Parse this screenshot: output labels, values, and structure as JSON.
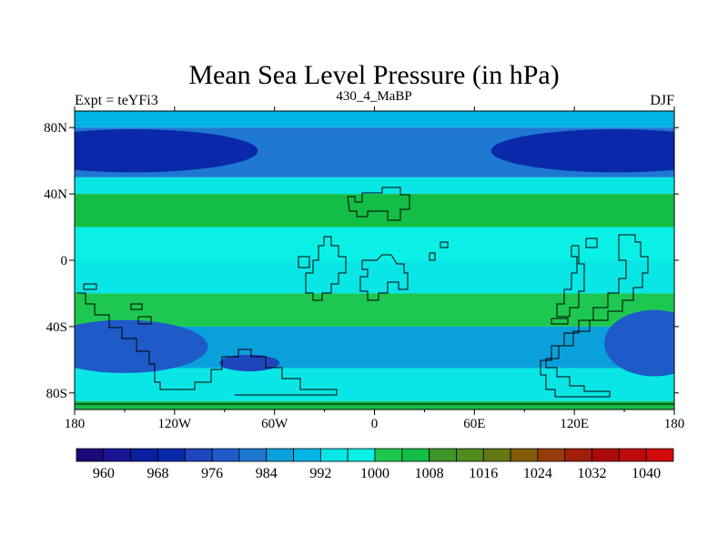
{
  "chart_data": {
    "type": "heatmap",
    "title": "Mean Sea Level Pressure (in hPa)",
    "left_label": "Expt = teYFi3",
    "center_label": "430_4_MaBP",
    "right_label": "DJF",
    "x_ticks": [
      {
        "value": -180,
        "label": "180"
      },
      {
        "value": -120,
        "label": "120W"
      },
      {
        "value": -60,
        "label": "60W"
      },
      {
        "value": 0,
        "label": "0"
      },
      {
        "value": 60,
        "label": "60E"
      },
      {
        "value": 120,
        "label": "120E"
      },
      {
        "value": 180,
        "label": "180"
      }
    ],
    "y_ticks": [
      {
        "value": 80,
        "label": "80N"
      },
      {
        "value": 40,
        "label": "40N"
      },
      {
        "value": 0,
        "label": "0"
      },
      {
        "value": -40,
        "label": "40S"
      },
      {
        "value": -80,
        "label": "80S"
      }
    ],
    "xlim": [
      -180,
      180
    ],
    "ylim": [
      -90,
      90
    ],
    "colorbar": {
      "boundaries": [
        956,
        960,
        964,
        968,
        972,
        976,
        980,
        984,
        988,
        992,
        996,
        1000,
        1004,
        1008,
        1012,
        1016,
        1020,
        1024,
        1028,
        1032,
        1036,
        1040,
        1044
      ],
      "labels": [
        {
          "value": 960,
          "label": "960"
        },
        {
          "value": 968,
          "label": "968"
        },
        {
          "value": 976,
          "label": "976"
        },
        {
          "value": 984,
          "label": "984"
        },
        {
          "value": 992,
          "label": "992"
        },
        {
          "value": 1000,
          "label": "1000"
        },
        {
          "value": 1008,
          "label": "1008"
        },
        {
          "value": 1016,
          "label": "1016"
        },
        {
          "value": 1024,
          "label": "1024"
        },
        {
          "value": 1032,
          "label": "1032"
        },
        {
          "value": 1040,
          "label": "1040"
        }
      ],
      "colors": [
        "#1a0a78",
        "#1a1496",
        "#0a1ea0",
        "#0a28aa",
        "#1e46bc",
        "#1e5ac8",
        "#1e78d2",
        "#0aa0dc",
        "#00b4e6",
        "#0ae6e6",
        "#0af0e6",
        "#1ec850",
        "#14be46",
        "#3c9628",
        "#508c1e",
        "#647814",
        "#825a0a",
        "#963c0a",
        "#a01e0a",
        "#aa0a0a",
        "#be0a0a",
        "#d20a0a"
      ]
    },
    "bands": [
      {
        "lat_min": 80,
        "lat_max": 90,
        "value": 988
      },
      {
        "lat_min": 50,
        "lat_max": 80,
        "value": 982
      },
      {
        "lat_min": 40,
        "lat_max": 50,
        "value": 994
      },
      {
        "lat_min": 20,
        "lat_max": 40,
        "value": 1006
      },
      {
        "lat_min": 0,
        "lat_max": 20,
        "value": 998
      },
      {
        "lat_min": -20,
        "lat_max": 0,
        "value": 994
      },
      {
        "lat_min": -40,
        "lat_max": -20,
        "value": 1000
      },
      {
        "lat_min": -65,
        "lat_max": -40,
        "value": 986
      },
      {
        "lat_min": -85,
        "lat_max": -65,
        "value": 994
      },
      {
        "lat_min": -90,
        "lat_max": -85,
        "value": 1006
      }
    ],
    "features": [
      {
        "name": "north-low-west",
        "lon": -145,
        "lat": 66,
        "rlon": 75,
        "rlat": 13,
        "value": 970
      },
      {
        "name": "north-low-east",
        "lon": 145,
        "lat": 66,
        "rlon": 75,
        "rlat": 13,
        "value": 970
      },
      {
        "name": "subtropical-high-west",
        "lon": -105,
        "lat": 30,
        "rlon": 70,
        "rlat": 8,
        "value": 1006
      },
      {
        "name": "subtropical-high-east",
        "lon": 145,
        "lat": 30,
        "rlon": 45,
        "rlat": 7,
        "value": 1006
      },
      {
        "name": "southern-low-west",
        "lon": -150,
        "lat": -52,
        "rlon": 50,
        "rlat": 16,
        "value": 976
      },
      {
        "name": "southern-low-mid",
        "lon": -75,
        "lat": -62,
        "rlon": 18,
        "rlat": 5,
        "value": 972
      },
      {
        "name": "southern-low-east",
        "lon": 168,
        "lat": -50,
        "rlon": 30,
        "rlat": 20,
        "value": 976
      }
    ]
  }
}
